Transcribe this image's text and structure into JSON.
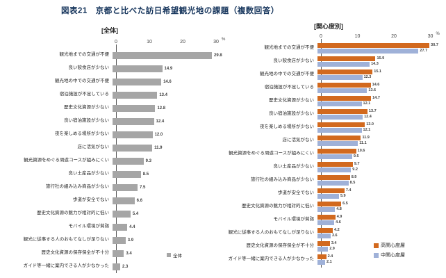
{
  "title": "図表21　京都と比べた訪日希望観光地の課題（複数回答）",
  "colors": {
    "overall_bar": "#a6a6a6",
    "high_interest_bar": "#d2691e",
    "mid_interest_bar": "#9fb1d8",
    "title_text": "#17365d"
  },
  "left_chart": {
    "header": "[全体]",
    "legend_label": "全体"
  },
  "right_chart": {
    "header": "[関心度別]",
    "legend_high": "高関心度層",
    "legend_mid": "中関心度層"
  },
  "chart_data": [
    {
      "type": "bar",
      "orientation": "horizontal",
      "title": "[全体]",
      "unit": "%",
      "x_ticks": [
        0,
        10,
        20,
        30
      ],
      "xlim": [
        0,
        33
      ],
      "grid": false,
      "legend_position": "bottom",
      "categories": [
        "観光地までの交通が不便",
        "良い飲食店が少ない",
        "観光地の中での交通が不便",
        "宿泊施設が不足している",
        "歴史文化資源が少ない",
        "良い宿泊施設が少ない",
        "夜を楽しめる場所が少ない",
        "店に活気がない",
        "観光資源をめぐる周遊コースが組みにくい",
        "良い土産品が少ない",
        "旅行社の組み込み商品が少ない",
        "歩道が安全でない",
        "歴史文化資源の魅力が相対的に低い",
        "モバイル環境が貧弱",
        "観光に従事する人のおもてなしが足りない",
        "歴史文化資源の保存保全が不十分",
        "ガイド等一緒に案内できる人が少なかった"
      ],
      "series": [
        {
          "name": "全体",
          "values": [
            29.8,
            14.9,
            14.6,
            13.4,
            12.8,
            12.4,
            12.0,
            11.9,
            9.3,
            8.5,
            7.5,
            6.6,
            5.4,
            4.4,
            3.9,
            3.4,
            2.3
          ]
        }
      ]
    },
    {
      "type": "bar",
      "orientation": "horizontal",
      "title": "[関心度別]",
      "unit": "%",
      "x_ticks": [
        0,
        10,
        20,
        30
      ],
      "xlim": [
        0,
        32
      ],
      "grid": false,
      "legend_position": "bottom-right",
      "categories": [
        "観光地までの交通が不便",
        "良い飲食店が少ない",
        "観光地の中での交通が不便",
        "宿泊施設が不足している",
        "歴史文化資源が少ない",
        "良い宿泊施設が少ない",
        "夜を楽しめる場所が少ない",
        "店に活気がない",
        "観光資源をめぐる周遊コースが組みにくい",
        "良い土産品が少ない",
        "旅行社の組み込み商品が少ない",
        "歩道が安全でない",
        "歴史文化資源の魅力が相対的に低い",
        "モバイル環境が貧弱",
        "観光に従事する人のおもてなしが足りない",
        "歴史文化資源の保存保全が不十分",
        "ガイド等一緒に案内できる人が少なかった"
      ],
      "series": [
        {
          "name": "高関心度層",
          "values": [
            30.7,
            15.9,
            15.1,
            14.6,
            14.7,
            13.7,
            13.0,
            11.9,
            10.6,
            9.7,
            8.9,
            7.4,
            6.5,
            4.9,
            4.2,
            3.4,
            2.4
          ]
        },
        {
          "name": "中関心度層",
          "values": [
            27.7,
            14.3,
            12.3,
            13.6,
            12.1,
            12.4,
            12.1,
            11.1,
            9.5,
            9.2,
            8.5,
            5.9,
            4.8,
            4.6,
            3.6,
            2.9,
            2.1
          ]
        }
      ]
    }
  ]
}
